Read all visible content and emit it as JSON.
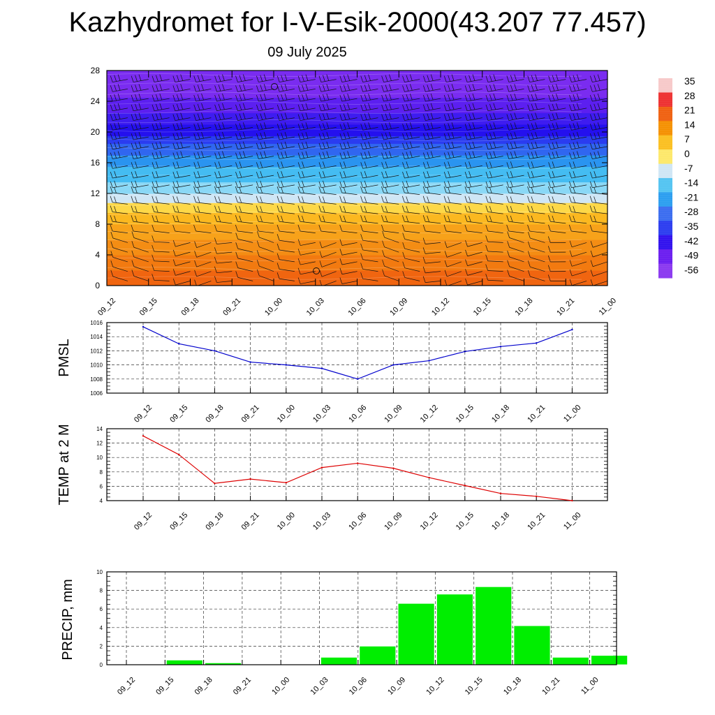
{
  "header": {
    "title": "Kazhydromet for I-V-Esik-2000(43.207 77.457)",
    "subtitle": "09 July 2025"
  },
  "chart_data": [
    {
      "type": "heatmap",
      "name": "cross-section",
      "x": [
        "09_12",
        "09_15",
        "09_18",
        "09_21",
        "10_00",
        "10_03",
        "10_06",
        "10_09",
        "10_12",
        "10_15",
        "10_18",
        "10_21",
        "11_00"
      ],
      "yticks": [
        "0",
        "4",
        "8",
        "12",
        "16",
        "20",
        "24",
        "28"
      ],
      "ylim": [
        0,
        28
      ],
      "colorbar": {
        "labels": [
          "35",
          "28",
          "21",
          "14",
          "7",
          "0",
          "-7",
          "-14",
          "-21",
          "-28",
          "-35",
          "-42",
          "-49",
          "-56"
        ],
        "colors": [
          "#f7c9c9",
          "#ee3030",
          "#f06010",
          "#f59000",
          "#fbbf20",
          "#fde86a",
          "#cfe6f5",
          "#52c4f2",
          "#2a9ef0",
          "#3a6cf0",
          "#2a3cf0",
          "#3010ee",
          "#6a1cf0",
          "#8a38f0"
        ]
      },
      "wind_barbs": true
    },
    {
      "type": "line",
      "name": "pmsl",
      "ylabel": "PMSL",
      "x": [
        "09_12",
        "09_15",
        "09_18",
        "09_21",
        "10_00",
        "10_03",
        "10_06",
        "10_09",
        "10_12",
        "10_15",
        "10_18",
        "10_21",
        "11_00"
      ],
      "values": [
        1015.4,
        1013.0,
        1012.0,
        1010.4,
        1010.0,
        1009.5,
        1008.0,
        1010.0,
        1010.6,
        1011.9,
        1012.6,
        1013.1,
        1015.0
      ],
      "yticks": [
        "1006",
        "1008",
        "1010",
        "1012",
        "1014",
        "1016"
      ],
      "ylim": [
        1006,
        1016
      ],
      "color": "#0000cc",
      "grid": true
    },
    {
      "type": "line",
      "name": "temp",
      "ylabel": "TEMP at 2 M",
      "x": [
        "09_12",
        "09_15",
        "09_18",
        "09_21",
        "10_00",
        "10_03",
        "10_06",
        "10_09",
        "10_12",
        "10_15",
        "10_18",
        "10_21",
        "11_00"
      ],
      "values": [
        13.0,
        10.4,
        6.4,
        7.0,
        6.5,
        8.6,
        9.2,
        8.5,
        7.2,
        6.1,
        5.0,
        4.6,
        4.0
      ],
      "yticks": [
        "4",
        "6",
        "8",
        "10",
        "12",
        "14"
      ],
      "ylim": [
        4,
        14
      ],
      "color": "#dd0000",
      "grid": true
    },
    {
      "type": "bar",
      "name": "precip",
      "ylabel": "PRECIP, mm",
      "categories": [
        "09_12",
        "09_15",
        "09_18",
        "09_21",
        "10_00",
        "10_03",
        "10_06",
        "10_09",
        "10_12",
        "10_15",
        "10_18",
        "10_21",
        "11_00"
      ],
      "values": [
        0,
        0.5,
        0.2,
        0,
        0,
        0.8,
        2.0,
        6.6,
        7.6,
        8.4,
        4.2,
        0.8,
        1.0
      ],
      "yticks": [
        "0",
        "2",
        "4",
        "6",
        "8",
        "10"
      ],
      "ylim": [
        0,
        10
      ],
      "color": "#00ee00",
      "grid": true
    }
  ]
}
